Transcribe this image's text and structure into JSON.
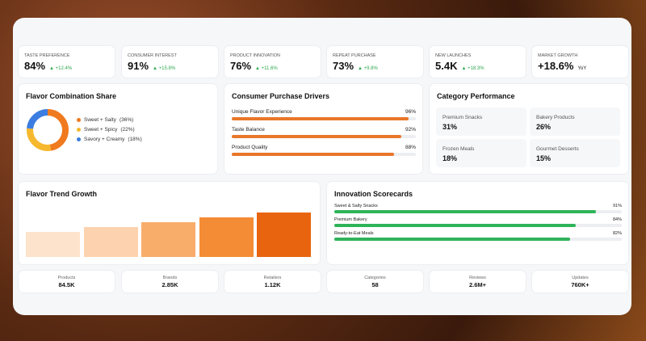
{
  "kpis": [
    {
      "label": "TASTE PREFERENCE",
      "value": "84%",
      "change": "▲ +12.4%"
    },
    {
      "label": "CONSUMER INTEREST",
      "value": "91%",
      "change": "▲ +15.8%"
    },
    {
      "label": "PRODUCT INNOVATION",
      "value": "76%",
      "change": "▲ +11.6%"
    },
    {
      "label": "REPEAT PURCHASE",
      "value": "73%",
      "change": "▲ +9.8%"
    },
    {
      "label": "NEW LAUNCHES",
      "value": "5.4K",
      "change": "▲ +18.3%"
    },
    {
      "label": "MARKET GROWTH",
      "value": "+18.6%",
      "suffix": "YoY"
    }
  ],
  "flavor_share": {
    "title": "Flavor Combination Share",
    "items": [
      {
        "name": "Sweet + Salty",
        "value": 36,
        "value_label": "(36%)",
        "color": "#f07a1e"
      },
      {
        "name": "Sweet + Spicy",
        "value": 22,
        "value_label": "(22%)",
        "color": "#f5b82e"
      },
      {
        "name": "Savory + Creamy",
        "value": 18,
        "value_label": "(18%)",
        "color": "#3b7de0"
      }
    ]
  },
  "purchase_drivers": {
    "title": "Consumer Purchase Drivers",
    "xlim": [
      0,
      100
    ],
    "color": "#e8772a",
    "items": [
      {
        "name": "Unique Flavor Experience",
        "value": 96,
        "value_label": "96%"
      },
      {
        "name": "Taste Balance",
        "value": 92,
        "value_label": "92%"
      },
      {
        "name": "Product Quality",
        "value": 88,
        "value_label": "88%"
      }
    ]
  },
  "category_performance": {
    "title": "Category Performance",
    "items": [
      {
        "name": "Premium Snacks",
        "value": "31%"
      },
      {
        "name": "Bakery Products",
        "value": "26%"
      },
      {
        "name": "Frozen Meals",
        "value": "18%"
      },
      {
        "name": "Gourmet Desserts",
        "value": "15%"
      }
    ]
  },
  "flavor_trend": {
    "title": "Flavor Trend Growth",
    "ylim": [
      0,
      100
    ],
    "values": [
      47,
      56,
      65,
      74,
      84
    ],
    "colors": [
      "#fde3cc",
      "#fcd3ae",
      "#f9ad6a",
      "#f48b35",
      "#e8640f"
    ]
  },
  "innovation": {
    "title": "Innovation Scorecards",
    "xlim": [
      0,
      100
    ],
    "color": "#2fb35a",
    "items": [
      {
        "name": "Sweet & Salty Snacks",
        "value": 91,
        "value_label": "91%"
      },
      {
        "name": "Premium Bakery",
        "value": 84,
        "value_label": "84%"
      },
      {
        "name": "Ready-to-Eat Meals",
        "value": 82,
        "value_label": "82%"
      }
    ]
  },
  "stats": [
    {
      "label": "Products",
      "value": "84.5K"
    },
    {
      "label": "Brands",
      "value": "2.85K"
    },
    {
      "label": "Retailers",
      "value": "1.12K"
    },
    {
      "label": "Categories",
      "value": "58"
    },
    {
      "label": "Reviews",
      "value": "2.6M+"
    },
    {
      "label": "Updates",
      "value": "760K+"
    }
  ]
}
